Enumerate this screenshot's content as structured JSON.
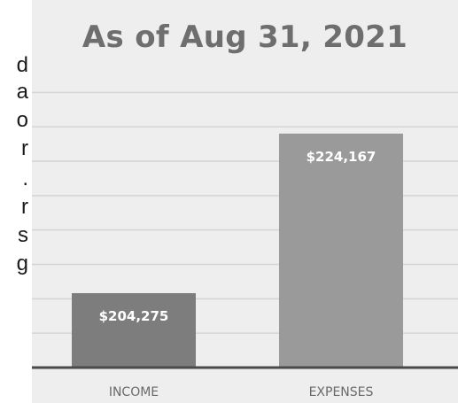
{
  "left_fragments": [
    "d",
    "a",
    "o",
    "r",
    ".",
    "r",
    "s",
    "g"
  ],
  "chart_data": {
    "type": "bar",
    "title": "As of Aug 31, 2021",
    "xlabel": "",
    "ylabel": "",
    "categories": [
      "INCOME",
      "EXPENSES"
    ],
    "values": [
      204275,
      224167
    ],
    "data_labels": [
      "$204,275",
      "$224,167"
    ],
    "ylim": [
      195000,
      230000
    ],
    "grid": true,
    "legend": "none",
    "colors": {
      "background": "#eeeeee",
      "income_bar": "#7d7d7d",
      "expenses_bar": "#9a9a9a",
      "gridline": "#d4d4d4",
      "axis": "#4a4a4a",
      "label": "#ffffff",
      "tick": "#6a6a6a"
    }
  }
}
